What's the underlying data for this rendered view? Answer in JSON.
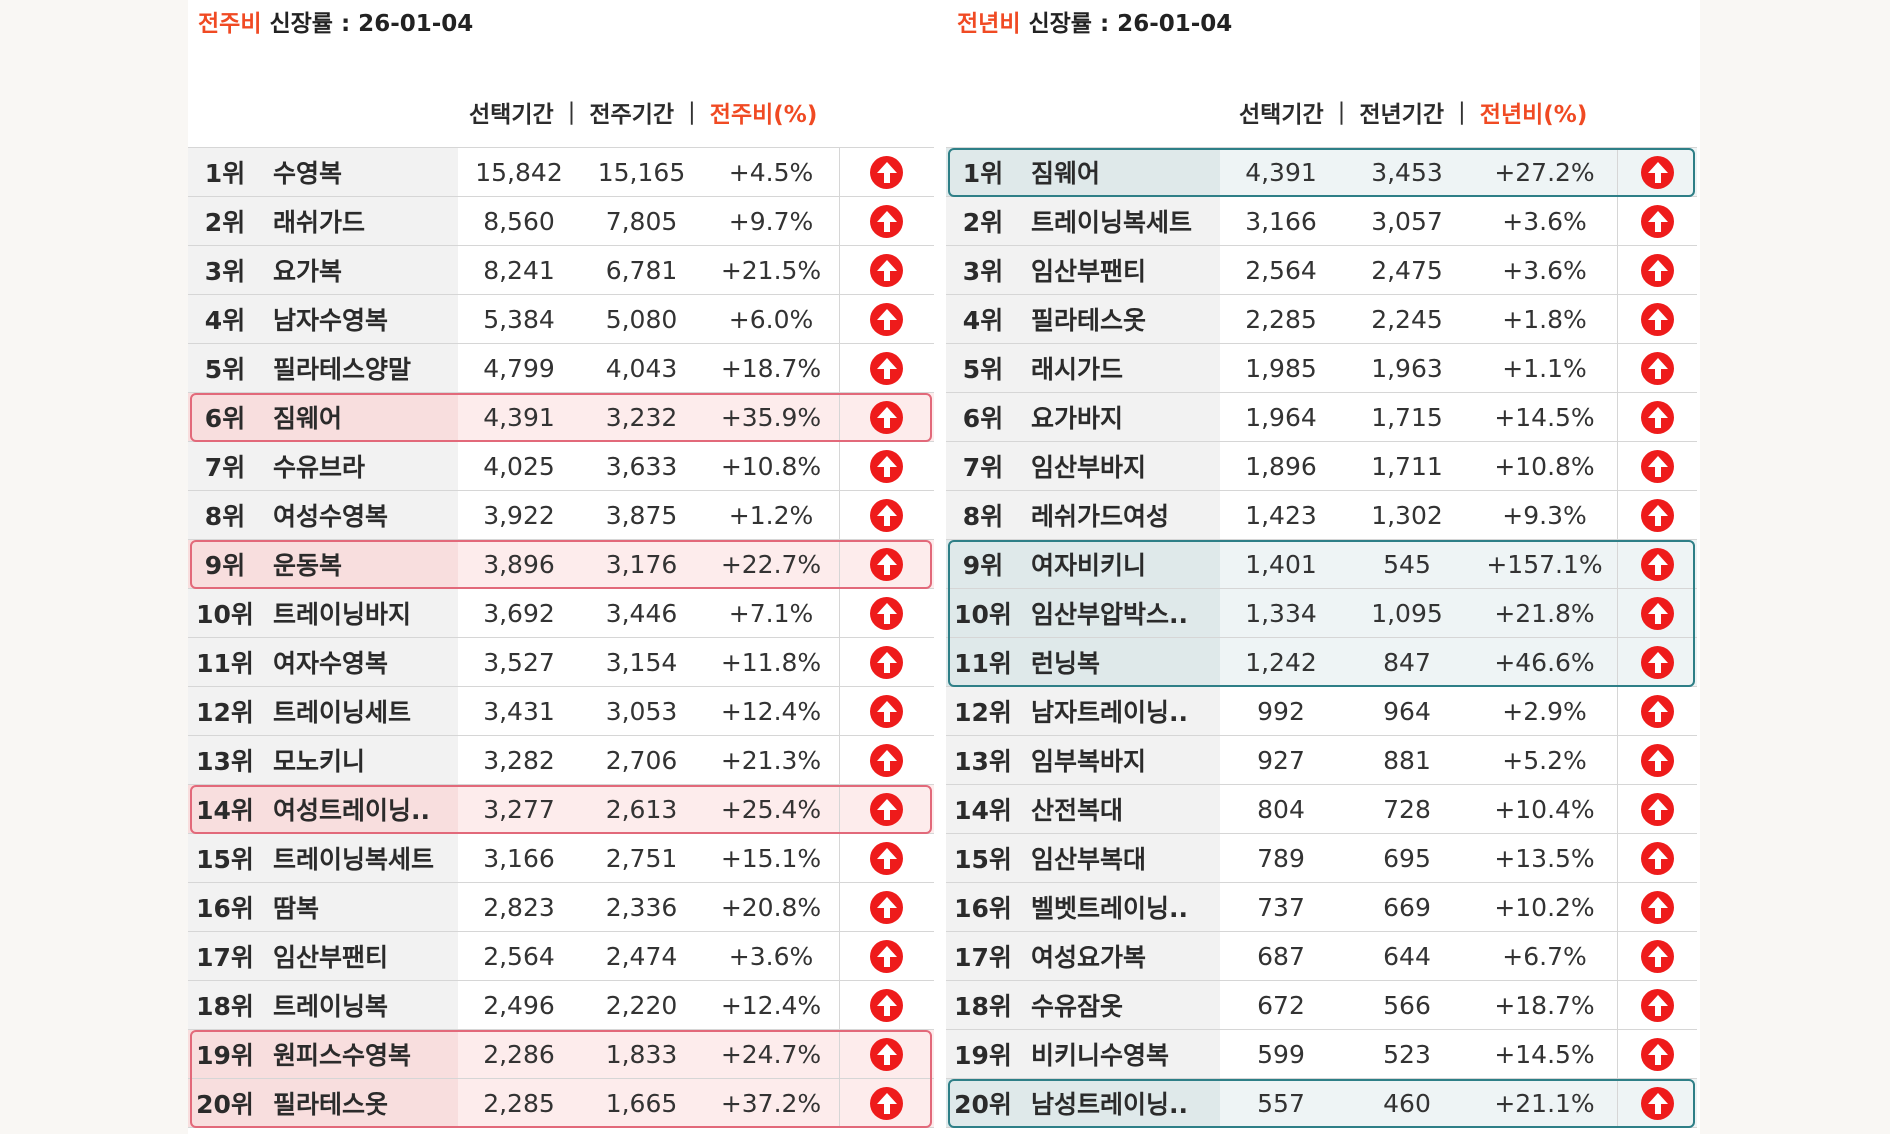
{
  "left": {
    "title_accent": "전주비",
    "title_rest": " 신장률 : 26-01-04",
    "headers": {
      "a": "선택기간",
      "b": "전주기간",
      "pct": "전주비(%)",
      "sep": "|"
    },
    "highlight_color": "#e2697a",
    "rows": [
      {
        "rank": "1위",
        "name": "수영복",
        "a": "15,842",
        "b": "15,165",
        "pct": "+4.5%"
      },
      {
        "rank": "2위",
        "name": "래쉬가드",
        "a": "8,560",
        "b": "7,805",
        "pct": "+9.7%"
      },
      {
        "rank": "3위",
        "name": "요가복",
        "a": "8,241",
        "b": "6,781",
        "pct": "+21.5%"
      },
      {
        "rank": "4위",
        "name": "남자수영복",
        "a": "5,384",
        "b": "5,080",
        "pct": "+6.0%"
      },
      {
        "rank": "5위",
        "name": "필라테스양말",
        "a": "4,799",
        "b": "4,043",
        "pct": "+18.7%"
      },
      {
        "rank": "6위",
        "name": "짐웨어",
        "a": "4,391",
        "b": "3,232",
        "pct": "+35.9%",
        "hl": true
      },
      {
        "rank": "7위",
        "name": "수유브라",
        "a": "4,025",
        "b": "3,633",
        "pct": "+10.8%"
      },
      {
        "rank": "8위",
        "name": "여성수영복",
        "a": "3,922",
        "b": "3,875",
        "pct": "+1.2%"
      },
      {
        "rank": "9위",
        "name": "운동복",
        "a": "3,896",
        "b": "3,176",
        "pct": "+22.7%",
        "hl": true
      },
      {
        "rank": "10위",
        "name": "트레이닝바지",
        "a": "3,692",
        "b": "3,446",
        "pct": "+7.1%"
      },
      {
        "rank": "11위",
        "name": "여자수영복",
        "a": "3,527",
        "b": "3,154",
        "pct": "+11.8%"
      },
      {
        "rank": "12위",
        "name": "트레이닝세트",
        "a": "3,431",
        "b": "3,053",
        "pct": "+12.4%"
      },
      {
        "rank": "13위",
        "name": "모노키니",
        "a": "3,282",
        "b": "2,706",
        "pct": "+21.3%"
      },
      {
        "rank": "14위",
        "name": "여성트레이닝..",
        "a": "3,277",
        "b": "2,613",
        "pct": "+25.4%",
        "hl": true
      },
      {
        "rank": "15위",
        "name": "트레이닝복세트",
        "a": "3,166",
        "b": "2,751",
        "pct": "+15.1%"
      },
      {
        "rank": "16위",
        "name": "땀복",
        "a": "2,823",
        "b": "2,336",
        "pct": "+20.8%"
      },
      {
        "rank": "17위",
        "name": "임산부팬티",
        "a": "2,564",
        "b": "2,474",
        "pct": "+3.6%"
      },
      {
        "rank": "18위",
        "name": "트레이닝복",
        "a": "2,496",
        "b": "2,220",
        "pct": "+12.4%"
      },
      {
        "rank": "19위",
        "name": "원피스수영복",
        "a": "2,286",
        "b": "1,833",
        "pct": "+24.7%",
        "hl": true
      },
      {
        "rank": "20위",
        "name": "필라테스옷",
        "a": "2,285",
        "b": "1,665",
        "pct": "+37.2%",
        "hl": true
      }
    ]
  },
  "right": {
    "title_accent": "전년비",
    "title_rest": " 신장률 : 26-01-04",
    "headers": {
      "a": "선택기간",
      "b": "전년기간",
      "pct": "전년비(%)",
      "sep": "|"
    },
    "highlight_color": "#2e7f87",
    "rows": [
      {
        "rank": "1위",
        "name": "짐웨어",
        "a": "4,391",
        "b": "3,453",
        "pct": "+27.2%",
        "hl": true
      },
      {
        "rank": "2위",
        "name": "트레이닝복세트",
        "a": "3,166",
        "b": "3,057",
        "pct": "+3.6%"
      },
      {
        "rank": "3위",
        "name": "임산부팬티",
        "a": "2,564",
        "b": "2,475",
        "pct": "+3.6%"
      },
      {
        "rank": "4위",
        "name": "필라테스옷",
        "a": "2,285",
        "b": "2,245",
        "pct": "+1.8%"
      },
      {
        "rank": "5위",
        "name": "래시가드",
        "a": "1,985",
        "b": "1,963",
        "pct": "+1.1%"
      },
      {
        "rank": "6위",
        "name": "요가바지",
        "a": "1,964",
        "b": "1,715",
        "pct": "+14.5%"
      },
      {
        "rank": "7위",
        "name": "임산부바지",
        "a": "1,896",
        "b": "1,711",
        "pct": "+10.8%"
      },
      {
        "rank": "8위",
        "name": "레쉬가드여성",
        "a": "1,423",
        "b": "1,302",
        "pct": "+9.3%"
      },
      {
        "rank": "9위",
        "name": "여자비키니",
        "a": "1,401",
        "b": "545",
        "pct": "+157.1%",
        "hl": true
      },
      {
        "rank": "10위",
        "name": "임산부압박스..",
        "a": "1,334",
        "b": "1,095",
        "pct": "+21.8%",
        "hl": true
      },
      {
        "rank": "11위",
        "name": "런닝복",
        "a": "1,242",
        "b": "847",
        "pct": "+46.6%",
        "hl": true
      },
      {
        "rank": "12위",
        "name": "남자트레이닝..",
        "a": "992",
        "b": "964",
        "pct": "+2.9%"
      },
      {
        "rank": "13위",
        "name": "임부복바지",
        "a": "927",
        "b": "881",
        "pct": "+5.2%"
      },
      {
        "rank": "14위",
        "name": "산전복대",
        "a": "804",
        "b": "728",
        "pct": "+10.4%"
      },
      {
        "rank": "15위",
        "name": "임산부복대",
        "a": "789",
        "b": "695",
        "pct": "+13.5%"
      },
      {
        "rank": "16위",
        "name": "벨벳트레이닝..",
        "a": "737",
        "b": "669",
        "pct": "+10.2%"
      },
      {
        "rank": "17위",
        "name": "여성요가복",
        "a": "687",
        "b": "644",
        "pct": "+6.7%"
      },
      {
        "rank": "18위",
        "name": "수유잠옷",
        "a": "672",
        "b": "566",
        "pct": "+18.7%"
      },
      {
        "rank": "19위",
        "name": "비키니수영복",
        "a": "599",
        "b": "523",
        "pct": "+14.5%"
      },
      {
        "rank": "20위",
        "name": "남성트레이닝..",
        "a": "557",
        "b": "460",
        "pct": "+21.1%",
        "hl": true
      }
    ]
  },
  "icon": "up-arrow-circle-icon",
  "accent_color": "#f04a23",
  "arrow_color": "#ee1b1b"
}
